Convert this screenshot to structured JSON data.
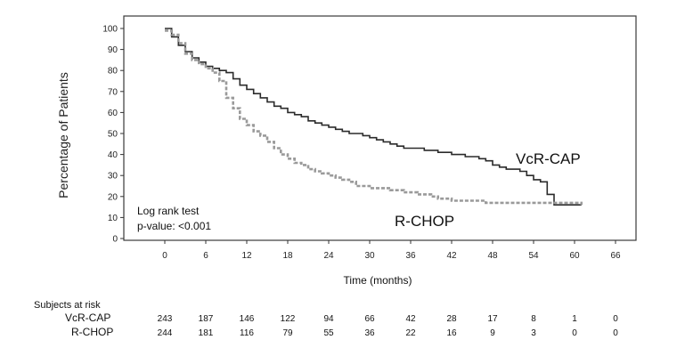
{
  "chart_data": {
    "type": "line",
    "ylabel": "Percentage of Patients",
    "xlabel": "Time (months)",
    "xlim": [
      -6,
      69
    ],
    "ylim": [
      0,
      100
    ],
    "x_ticks": [
      0,
      6,
      12,
      18,
      24,
      30,
      36,
      42,
      48,
      54,
      60,
      66
    ],
    "y_ticks": [
      0,
      10,
      20,
      30,
      40,
      50,
      60,
      70,
      80,
      90,
      100
    ],
    "annotation": [
      "Log rank test",
      "p-value: <0.001"
    ],
    "series": [
      {
        "name": "VcR-CAP",
        "color": "#2b2b2b",
        "dash": "solid",
        "x": [
          0,
          1,
          2,
          3,
          4,
          5,
          6,
          7,
          8,
          9,
          10,
          11,
          12,
          13,
          14,
          15,
          16,
          17,
          18,
          19,
          20,
          21,
          22,
          23,
          24,
          25,
          26,
          27,
          28,
          29,
          30,
          31,
          32,
          33,
          34,
          35,
          36,
          37,
          38,
          39,
          40,
          41,
          42,
          43,
          44,
          45,
          46,
          47,
          48,
          49,
          50,
          51,
          52,
          53,
          54,
          55,
          56,
          57,
          58,
          59,
          60,
          61
        ],
        "y": [
          100,
          96,
          92,
          89,
          86,
          84,
          82,
          81,
          80,
          79,
          76,
          73,
          71,
          69,
          67,
          65,
          63,
          62,
          60,
          59,
          58,
          56,
          55,
          54,
          53,
          52,
          51,
          50,
          50,
          49,
          48,
          47,
          46,
          45,
          44,
          43,
          43,
          43,
          42,
          42,
          41,
          41,
          40,
          40,
          39,
          39,
          38,
          37,
          35,
          34,
          33,
          33,
          32,
          30,
          28,
          27,
          21,
          16,
          16,
          16,
          16,
          16
        ]
      },
      {
        "name": "R-CHOP",
        "color": "#9a9a9a",
        "dash": "dashed",
        "x": [
          0,
          1,
          2,
          3,
          4,
          5,
          6,
          7,
          8,
          9,
          10,
          11,
          12,
          13,
          14,
          15,
          16,
          17,
          18,
          19,
          20,
          21,
          22,
          23,
          24,
          25,
          26,
          27,
          28,
          29,
          30,
          31,
          32,
          33,
          34,
          35,
          36,
          37,
          38,
          39,
          40,
          41,
          42,
          43,
          44,
          45,
          46,
          47,
          48,
          49,
          50,
          51,
          52,
          53,
          54,
          55,
          56,
          57,
          58,
          59,
          60,
          61
        ],
        "y": [
          99,
          97,
          93,
          88,
          85,
          83,
          81,
          79,
          75,
          67,
          62,
          57,
          54,
          51,
          49,
          46,
          43,
          40,
          38,
          36,
          35,
          33,
          32,
          31,
          30,
          29,
          28,
          27,
          25,
          25,
          24,
          24,
          24,
          23,
          23,
          22,
          22,
          21,
          21,
          20,
          19,
          19,
          18,
          18,
          18,
          18,
          18,
          17,
          17,
          17,
          17,
          17,
          17,
          17,
          17,
          17,
          17,
          17,
          17,
          17,
          17,
          16
        ]
      }
    ],
    "risk_table": {
      "title": "Subjects at risk",
      "times": [
        0,
        6,
        12,
        18,
        24,
        30,
        36,
        42,
        48,
        54,
        60,
        66
      ],
      "rows": [
        {
          "name": "VcR-CAP",
          "values": [
            "243",
            "187",
            "146",
            "122",
            "94",
            "66",
            "42",
            "28",
            "17",
            "8",
            "1",
            "0"
          ]
        },
        {
          "name": "R-CHOP",
          "values": [
            "244",
            "181",
            "116",
            "79",
            "55",
            "36",
            "22",
            "16",
            "9",
            "3",
            "0",
            "0"
          ]
        }
      ]
    }
  }
}
